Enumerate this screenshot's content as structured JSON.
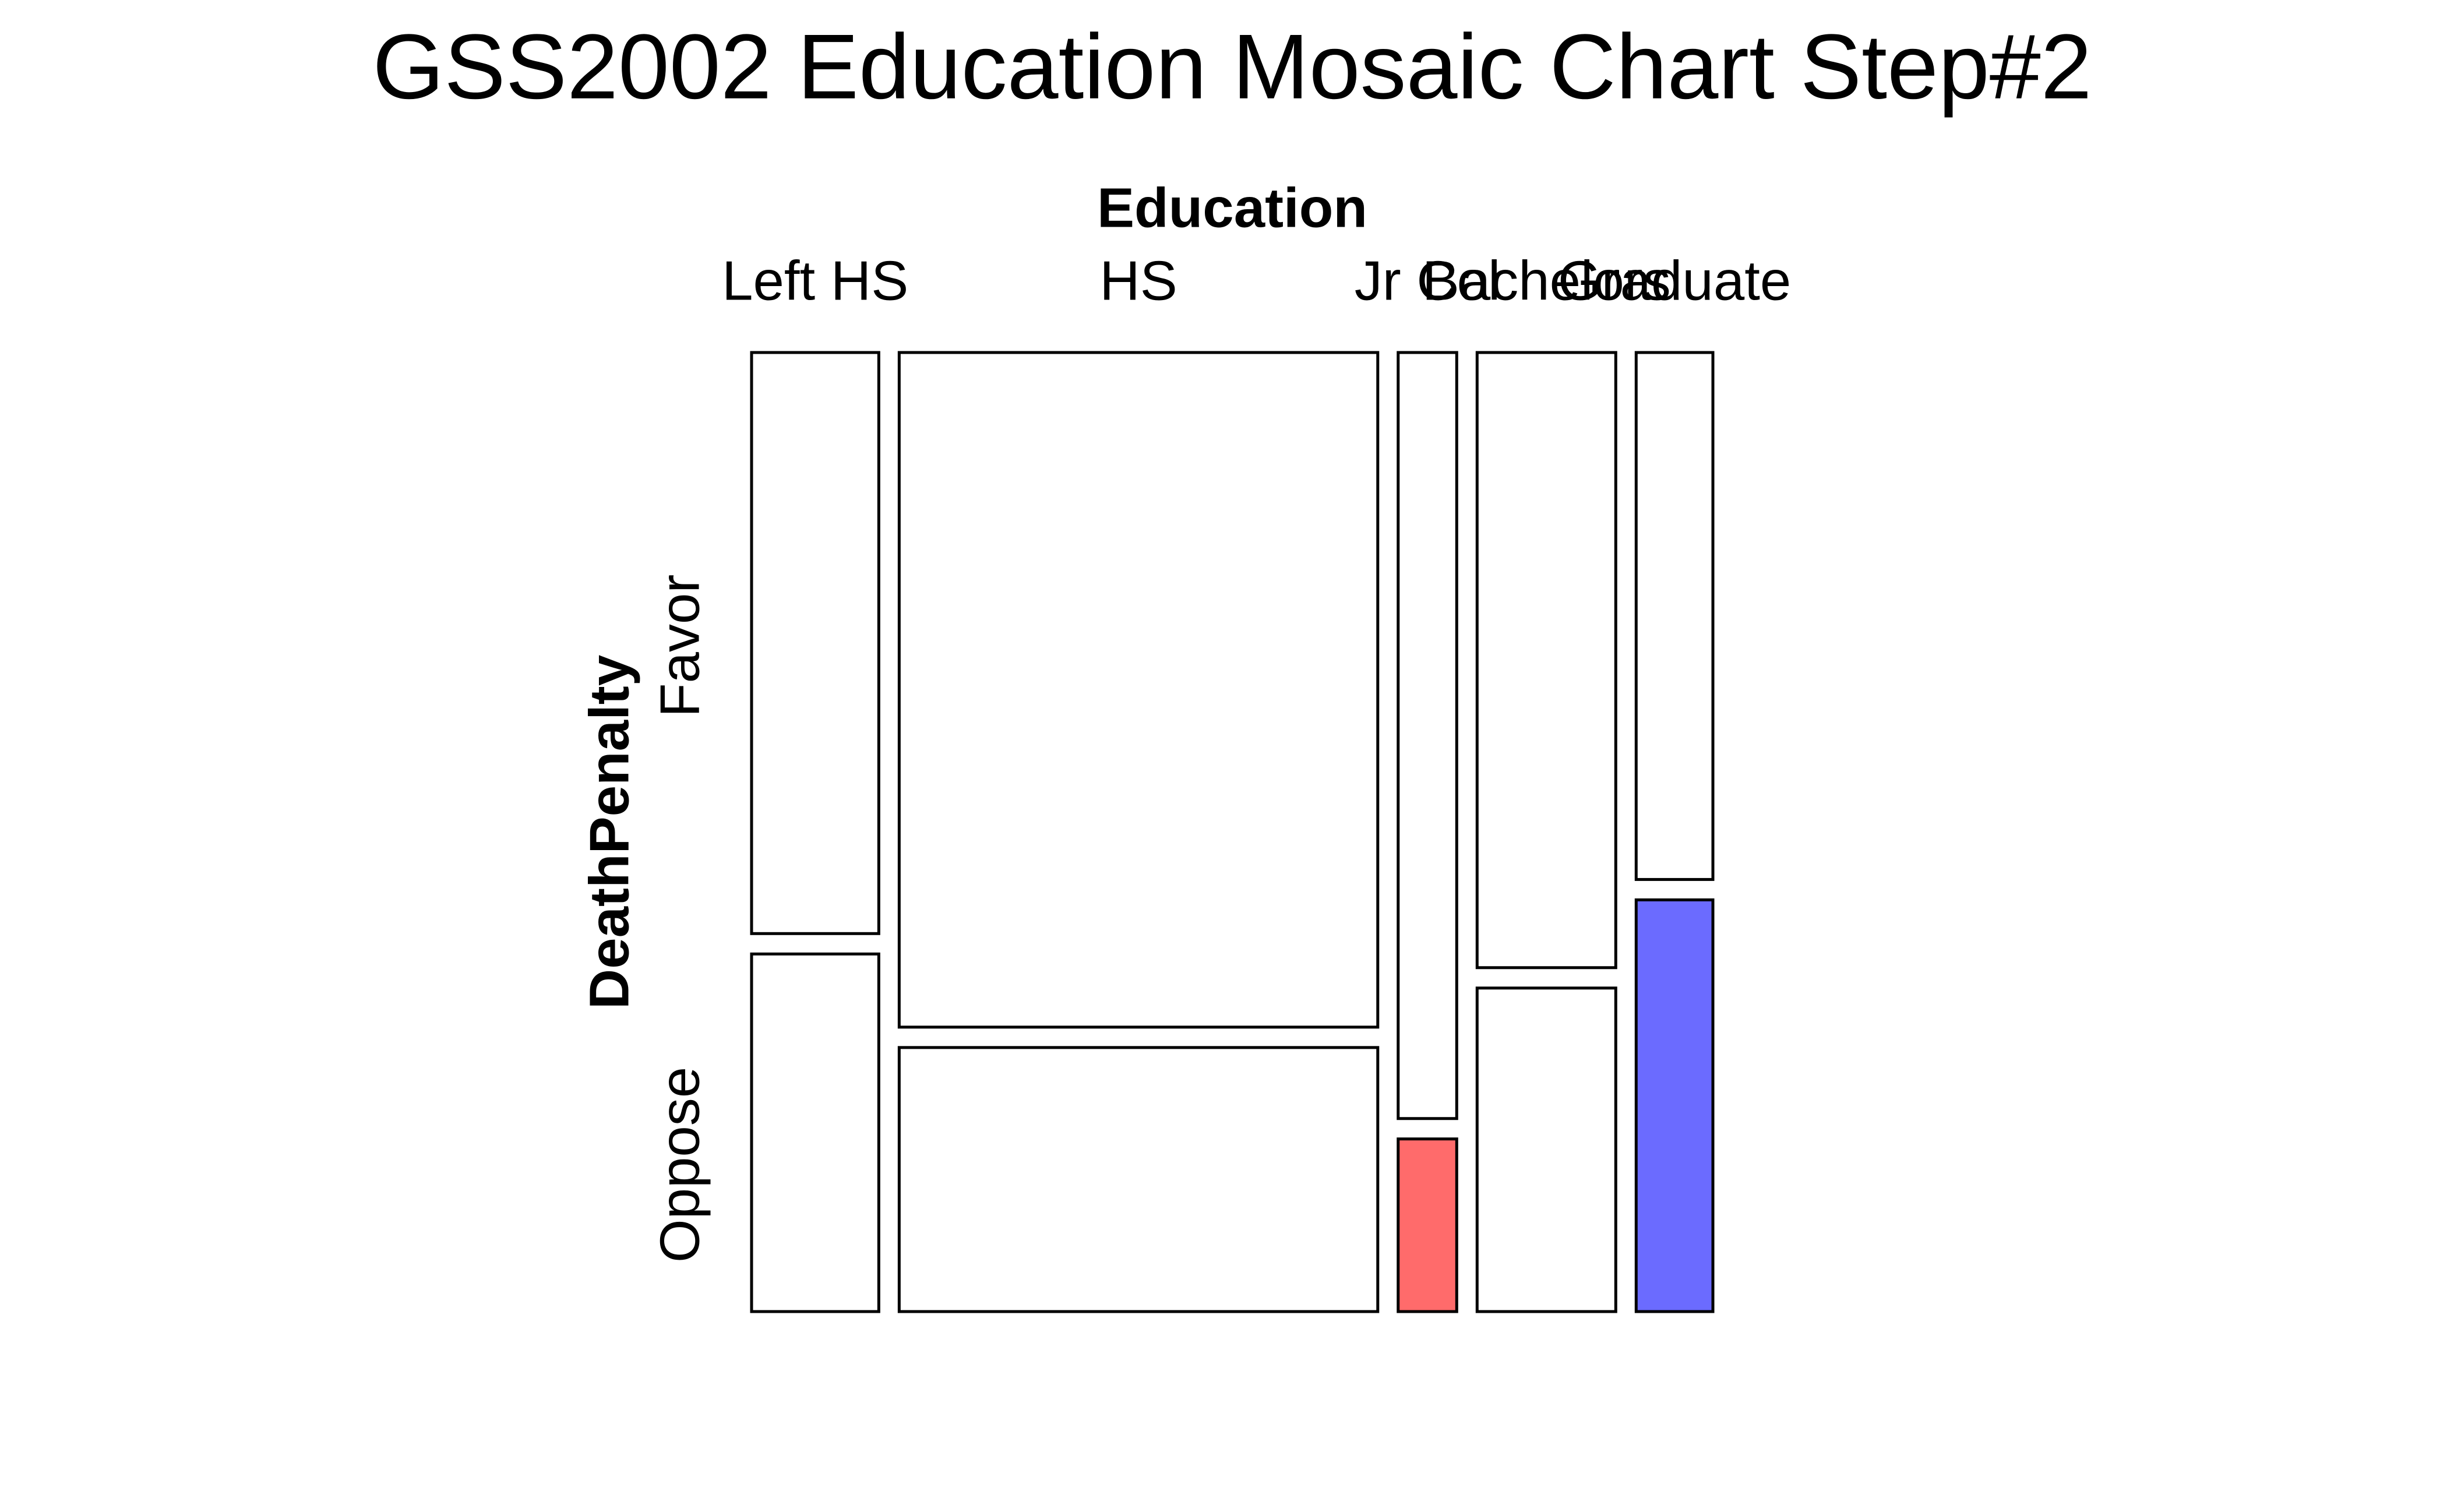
{
  "chart_data": {
    "type": "mosaic",
    "title": "GSS2002 Education Mosaic Chart Step#2",
    "x_label": "Education",
    "y_label": "DeathPenalty",
    "categories": [
      "Left HS",
      "HS",
      "Jr Col",
      "Bachelors",
      "Graduate"
    ],
    "series": [
      {
        "name": "Favor",
        "values": [
          117,
          511,
          71,
          135,
          64
        ],
        "colors": [
          "#ffffff",
          "#ffffff",
          "#ffffff",
          "#ffffff",
          "#ffffff"
        ]
      },
      {
        "name": "Oppose",
        "values": [
          72,
          200,
          16,
          71,
          50
        ],
        "colors": [
          "#ffffff",
          "#ffffff",
          "#ff6b6b",
          "#ffffff",
          "#6b6bff"
        ]
      }
    ]
  }
}
